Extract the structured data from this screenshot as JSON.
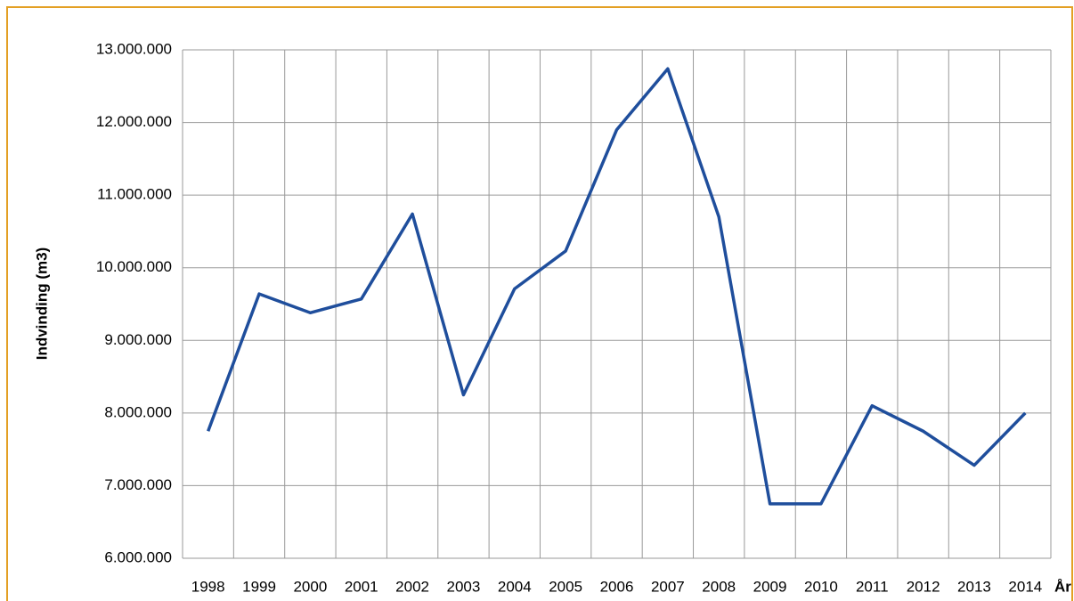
{
  "chart_data": {
    "type": "line",
    "y_label": "Indvinding (m3)",
    "x_label": "År",
    "categories": [
      "1998",
      "1999",
      "2000",
      "2001",
      "2002",
      "2003",
      "2004",
      "2005",
      "2006",
      "2007",
      "2008",
      "2009",
      "2010",
      "2011",
      "2012",
      "2013",
      "2014"
    ],
    "series": [
      {
        "color": "#1f4e9c",
        "values": [
          7750000,
          9640000,
          9380000,
          9570000,
          10740000,
          8250000,
          9710000,
          10230000,
          11900000,
          12740000,
          10700000,
          6750000,
          6750000,
          8100000,
          7750000,
          7280000,
          8000000
        ]
      }
    ],
    "ylim": [
      6000000,
      13000000
    ],
    "yticks": [
      {
        "value": 6000000,
        "label": "6.000.000"
      },
      {
        "value": 7000000,
        "label": "7.000.000"
      },
      {
        "value": 8000000,
        "label": "8.000.000"
      },
      {
        "value": 9000000,
        "label": "9.000.000"
      },
      {
        "value": 10000000,
        "label": "10.000.000"
      },
      {
        "value": 11000000,
        "label": "11.000.000"
      },
      {
        "value": 12000000,
        "label": "12.000.000"
      },
      {
        "value": 13000000,
        "label": "13.000.000"
      }
    ],
    "grid": true
  }
}
